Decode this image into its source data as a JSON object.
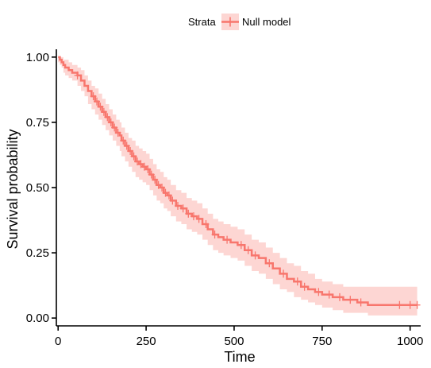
{
  "chart_data": {
    "type": "line",
    "subtype": "kaplan-meier",
    "title": "",
    "xlabel": "Time",
    "ylabel": "Survival probability",
    "xlim": [
      -5,
      1030
    ],
    "ylim": [
      -0.03,
      1.03
    ],
    "x_ticks": [
      0,
      250,
      500,
      750,
      1000
    ],
    "y_ticks": [
      0,
      0.25,
      0.5,
      0.75,
      1.0
    ],
    "x_tick_labels": [
      "0",
      "250",
      "500",
      "750",
      "1000"
    ],
    "y_tick_labels": [
      "0.00",
      "0.25",
      "0.50",
      "0.75",
      "1.00"
    ],
    "grid": false,
    "legend": {
      "position": "top",
      "title": "Strata",
      "entries": [
        "Null model"
      ]
    },
    "series": [
      {
        "name": "Null model",
        "color": "#F8766D",
        "ci_color": "#F8766D",
        "x": [
          0,
          5,
          10,
          15,
          20,
          30,
          40,
          55,
          65,
          75,
          85,
          95,
          105,
          115,
          125,
          135,
          145,
          155,
          165,
          175,
          180,
          190,
          200,
          210,
          220,
          230,
          240,
          250,
          260,
          270,
          280,
          290,
          300,
          310,
          320,
          335,
          350,
          365,
          380,
          395,
          410,
          425,
          440,
          455,
          470,
          490,
          510,
          530,
          550,
          570,
          590,
          610,
          630,
          650,
          670,
          690,
          710,
          730,
          750,
          780,
          810,
          850,
          880,
          1020
        ],
        "y": [
          1.0,
          0.99,
          0.98,
          0.97,
          0.96,
          0.95,
          0.94,
          0.93,
          0.91,
          0.89,
          0.87,
          0.85,
          0.83,
          0.81,
          0.79,
          0.77,
          0.75,
          0.73,
          0.71,
          0.7,
          0.68,
          0.66,
          0.64,
          0.62,
          0.6,
          0.59,
          0.58,
          0.57,
          0.55,
          0.53,
          0.51,
          0.5,
          0.48,
          0.47,
          0.45,
          0.43,
          0.42,
          0.4,
          0.39,
          0.38,
          0.36,
          0.34,
          0.32,
          0.31,
          0.3,
          0.29,
          0.28,
          0.26,
          0.24,
          0.23,
          0.21,
          0.19,
          0.17,
          0.15,
          0.14,
          0.12,
          0.11,
          0.1,
          0.09,
          0.08,
          0.07,
          0.06,
          0.05,
          0.05
        ],
        "lower": [
          0.98,
          0.97,
          0.96,
          0.94,
          0.93,
          0.92,
          0.91,
          0.89,
          0.87,
          0.85,
          0.82,
          0.8,
          0.78,
          0.76,
          0.74,
          0.72,
          0.7,
          0.68,
          0.66,
          0.64,
          0.62,
          0.6,
          0.58,
          0.56,
          0.54,
          0.53,
          0.52,
          0.51,
          0.49,
          0.47,
          0.45,
          0.44,
          0.42,
          0.41,
          0.39,
          0.37,
          0.36,
          0.34,
          0.33,
          0.32,
          0.3,
          0.28,
          0.26,
          0.25,
          0.24,
          0.23,
          0.22,
          0.2,
          0.18,
          0.17,
          0.15,
          0.13,
          0.11,
          0.1,
          0.08,
          0.07,
          0.06,
          0.05,
          0.04,
          0.03,
          0.02,
          0.02,
          0.01,
          0.01
        ],
        "upper": [
          1.0,
          1.0,
          1.0,
          0.99,
          0.99,
          0.98,
          0.97,
          0.96,
          0.95,
          0.93,
          0.91,
          0.89,
          0.88,
          0.86,
          0.84,
          0.82,
          0.8,
          0.78,
          0.76,
          0.75,
          0.73,
          0.71,
          0.69,
          0.68,
          0.66,
          0.65,
          0.64,
          0.63,
          0.61,
          0.59,
          0.57,
          0.56,
          0.54,
          0.53,
          0.51,
          0.49,
          0.48,
          0.46,
          0.45,
          0.44,
          0.42,
          0.4,
          0.38,
          0.37,
          0.36,
          0.35,
          0.34,
          0.32,
          0.3,
          0.29,
          0.27,
          0.25,
          0.23,
          0.21,
          0.2,
          0.18,
          0.17,
          0.15,
          0.14,
          0.13,
          0.12,
          0.12,
          0.12,
          0.12
        ],
        "censor_x": [
          55,
          100,
          110,
          120,
          130,
          140,
          150,
          160,
          170,
          185,
          195,
          205,
          215,
          225,
          235,
          245,
          255,
          265,
          275,
          285,
          295,
          305,
          315,
          325,
          340,
          355,
          370,
          385,
          400,
          420,
          445,
          480,
          520,
          540,
          560,
          600,
          640,
          680,
          700,
          740,
          770,
          800,
          830,
          860,
          970,
          1000,
          1020
        ]
      }
    ]
  }
}
